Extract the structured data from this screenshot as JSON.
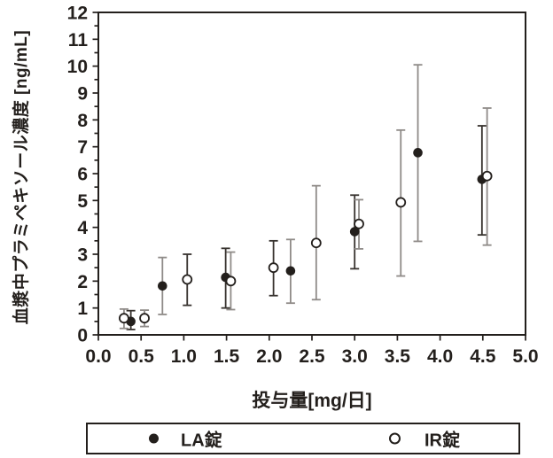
{
  "chart_data": {
    "type": "scatter",
    "title": "",
    "xlabel": "投与量[mg/日]",
    "ylabel": "血漿中プラミペキソール濃度 [ng/mL]",
    "xlim": [
      0,
      5
    ],
    "ylim": [
      0,
      12
    ],
    "x_ticks": [
      0,
      0.5,
      1,
      1.5,
      2,
      2.5,
      3,
      3.5,
      4,
      4.5,
      5
    ],
    "x_tick_labels": [
      "0.0",
      "0.5",
      "1.0",
      "1.5",
      "2.0",
      "2.5",
      "3.0",
      "3.5",
      "4.0",
      "4.5",
      "5.0"
    ],
    "y_ticks": [
      0,
      1,
      2,
      3,
      4,
      5,
      6,
      7,
      8,
      9,
      10,
      11,
      12
    ],
    "y_minor_tick_step": 0.5,
    "grid": false,
    "legend_position": "bottom",
    "colors": {
      "ink": "#231f1c",
      "bar_dark": "#37322e",
      "bar_gray": "#8f8b88",
      "background": "#ffffff"
    },
    "series": [
      {
        "name": "LA錠",
        "marker": "filled-circle",
        "points": [
          {
            "x": 0.38,
            "y": 0.5,
            "err_lo": 0.2,
            "err_hi": 0.9,
            "bar": "dark"
          },
          {
            "x": 0.75,
            "y": 1.82,
            "err_lo": 0.76,
            "err_hi": 2.88,
            "bar": "gray"
          },
          {
            "x": 1.49,
            "y": 2.14,
            "err_lo": 1.0,
            "err_hi": 3.22,
            "bar": "dark"
          },
          {
            "x": 2.25,
            "y": 2.38,
            "err_lo": 1.18,
            "err_hi": 3.55,
            "bar": "gray"
          },
          {
            "x": 3.0,
            "y": 3.84,
            "err_lo": 2.46,
            "err_hi": 5.2,
            "bar": "dark"
          },
          {
            "x": 3.74,
            "y": 6.78,
            "err_lo": 3.48,
            "err_hi": 10.05,
            "bar": "gray"
          },
          {
            "x": 4.49,
            "y": 5.79,
            "err_lo": 3.72,
            "err_hi": 7.78,
            "bar": "dark"
          }
        ]
      },
      {
        "name": "IR錠",
        "marker": "open-circle",
        "points": [
          {
            "x": 0.3,
            "y": 0.62,
            "err_lo": 0.24,
            "err_hi": 0.96,
            "bar": "gray"
          },
          {
            "x": 0.54,
            "y": 0.62,
            "err_lo": 0.31,
            "err_hi": 0.92,
            "bar": "gray"
          },
          {
            "x": 1.04,
            "y": 2.06,
            "err_lo": 1.1,
            "err_hi": 3.0,
            "bar": "dark"
          },
          {
            "x": 1.55,
            "y": 2.0,
            "err_lo": 0.94,
            "err_hi": 3.08,
            "bar": "gray"
          },
          {
            "x": 2.05,
            "y": 2.5,
            "err_lo": 1.46,
            "err_hi": 3.5,
            "bar": "dark"
          },
          {
            "x": 2.55,
            "y": 3.42,
            "err_lo": 1.31,
            "err_hi": 5.55,
            "bar": "gray"
          },
          {
            "x": 3.05,
            "y": 4.13,
            "err_lo": 3.2,
            "err_hi": 5.03,
            "bar": "gray"
          },
          {
            "x": 3.54,
            "y": 4.93,
            "err_lo": 2.19,
            "err_hi": 7.62,
            "bar": "gray"
          },
          {
            "x": 4.55,
            "y": 5.91,
            "err_lo": 3.34,
            "err_hi": 8.44,
            "bar": "gray"
          }
        ]
      }
    ],
    "legend": [
      {
        "label": "LA錠",
        "marker": "filled-circle"
      },
      {
        "label": "IR錠",
        "marker": "open-circle"
      }
    ]
  }
}
